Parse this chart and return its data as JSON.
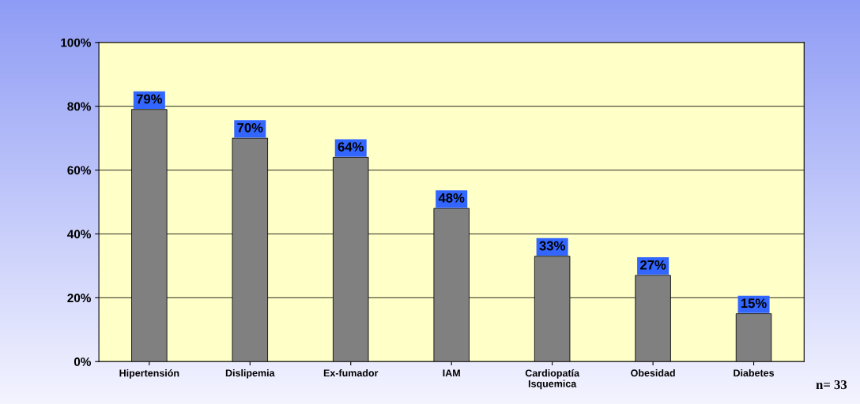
{
  "chart_data": {
    "type": "bar",
    "categories": [
      "Hipertensión",
      "Dislipemia",
      "Ex-fumador",
      "IAM",
      "Cardiopatía Isquemica",
      "Obesidad",
      "Diabetes"
    ],
    "values": [
      79,
      70,
      64,
      48,
      33,
      27,
      15
    ],
    "value_labels": [
      "79%",
      "70%",
      "64%",
      "48%",
      "33%",
      "27%",
      "15%"
    ],
    "color": "#808080",
    "ylim": [
      0,
      100
    ],
    "yticks": [
      {
        "value": 0,
        "label": "0%"
      },
      {
        "value": 20,
        "label": "20%"
      },
      {
        "value": 40,
        "label": "40%"
      },
      {
        "value": 60,
        "label": "60%"
      },
      {
        "value": 80,
        "label": "80%"
      },
      {
        "value": 100,
        "label": "100%"
      }
    ],
    "grid": "y",
    "annotations": [
      "n= 33"
    ]
  }
}
